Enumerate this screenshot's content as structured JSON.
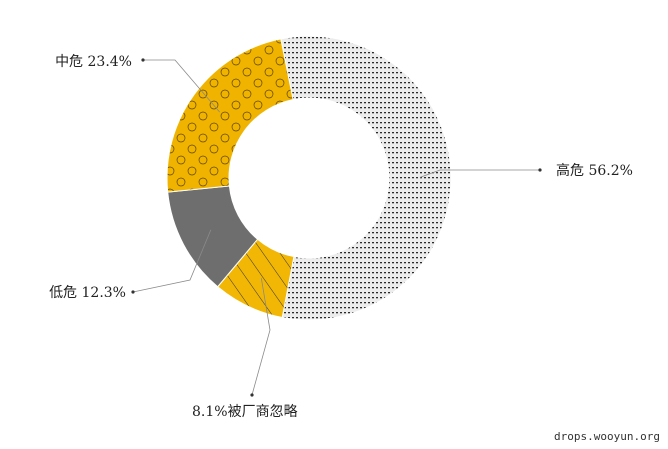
{
  "chart_data": {
    "type": "pie",
    "title": "",
    "slices": [
      {
        "name": "高危",
        "value": 56.2,
        "label": "高危 56.2%",
        "color": "#e6e6e6",
        "pattern": "dots-rows"
      },
      {
        "name": "被厂商忽略",
        "value": 8.1,
        "label": "8.1%被厂商忽略",
        "color": "#f2b705",
        "pattern": "diagonal"
      },
      {
        "name": "低危",
        "value": 12.3,
        "label": "低危 12.3%",
        "color": "#6e6e6e",
        "pattern": "solid"
      },
      {
        "name": "中危",
        "value": 23.4,
        "label": "中危 23.4%",
        "color": "#f0b400",
        "pattern": "circles"
      }
    ],
    "legend": "none"
  },
  "watermark": "drops.wooyun.org"
}
